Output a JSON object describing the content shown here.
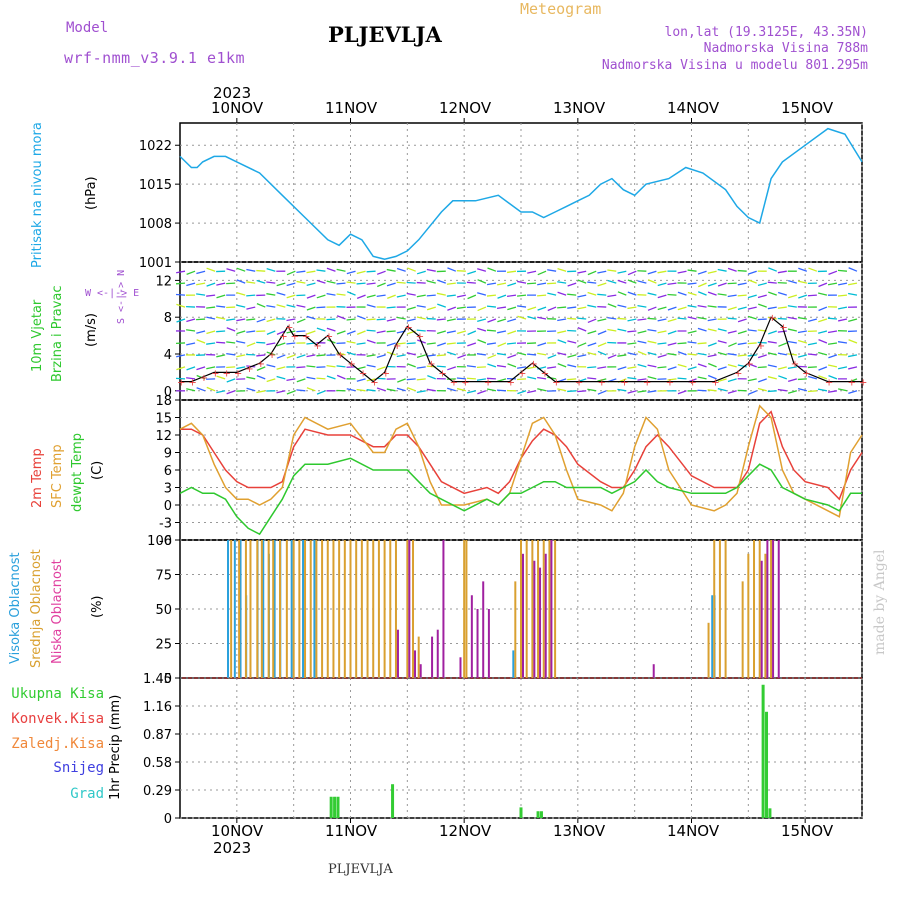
{
  "header": {
    "model_label": "Model",
    "model_name": "wrf-nmm_v3.9.1 e1km",
    "city": "PLJEVLJA",
    "meteogram": "Meteogram",
    "lonlat": "lon,lat (19.3125E, 43.35N)",
    "altitude": "Nadmorska Visina 788m",
    "altitude_model": "Nadmorska Visina u modelu 801.295m"
  },
  "footer": {
    "city": "PLJEVLJA",
    "credit": "made by Angel"
  },
  "time_axis": {
    "year": "2023",
    "days": [
      "10NOV",
      "11NOV",
      "12NOV",
      "13NOV",
      "14NOV",
      "15NOV"
    ]
  },
  "colors": {
    "pressure": "#1ea8e6",
    "temp2m": "#e8413a",
    "sfc_temp": "#e0a030",
    "dewpoint": "#2ec82e",
    "cloud_high": "#2aa0dc",
    "cloud_mid": "#d9a030",
    "cloud_low": "#a020a0",
    "precip_total": "#33cc33",
    "convective": "#e84040",
    "freezing": "#f0883a",
    "snow": "#4040e0",
    "hail": "#30c8c8",
    "purple_label": "#a050d0"
  },
  "panel_labels": {
    "pressure": "Pritisak na nivou mora",
    "pressure_unit": "(hPa)",
    "wind_line1": "10m Vjetar",
    "wind_line2": "Brzina i Pravac",
    "wind_unit": "(m/s)",
    "wind_compass": "W <-|-> E",
    "wind_compass_v": "S <-|-> N",
    "temp_line1": "2m Temp",
    "temp_line2": "SFC Temp",
    "temp_line3": "dewpt Temp",
    "temp_unit": "(C)",
    "cloud_line1": "Visoka Oblacnost",
    "cloud_line2": "Srednja Oblacnost",
    "cloud_line3": "Niska Oblacnost",
    "cloud_unit": "(%)",
    "precip_unit": "1hr Precip (mm)",
    "precip_legend": [
      "Ukupna Kisa",
      "Konvek.Kisa",
      "Zaledj.Kisa",
      "Snijeg",
      "Grad"
    ]
  },
  "chart_data": [
    {
      "type": "line",
      "name": "pressure",
      "x_unit": "days after 10NOV 00Z",
      "xlim": [
        -0.5,
        5.5
      ],
      "ylim": [
        1001,
        1026
      ],
      "yticks": [
        "1001",
        "1008",
        "1015",
        "1022"
      ],
      "x": [
        -0.5,
        -0.4,
        -0.35,
        -0.3,
        -0.2,
        -0.1,
        0,
        0.2,
        0.4,
        0.6,
        0.8,
        0.9,
        1.0,
        1.1,
        1.2,
        1.3,
        1.4,
        1.5,
        1.6,
        1.8,
        1.9,
        2.0,
        2.1,
        2.3,
        2.5,
        2.6,
        2.7,
        2.8,
        2.9,
        3.0,
        3.1,
        3.2,
        3.3,
        3.4,
        3.5,
        3.6,
        3.8,
        3.95,
        4.1,
        4.3,
        4.4,
        4.5,
        4.6,
        4.65,
        4.7,
        4.8,
        5.0,
        5.2,
        5.35,
        5.5
      ],
      "y": [
        1020,
        1018,
        1018,
        1019,
        1020,
        1020,
        1019,
        1017,
        1013,
        1009,
        1005,
        1004,
        1006,
        1005,
        1002,
        1001.5,
        1002,
        1003,
        1005,
        1010,
        1012,
        1012,
        1012,
        1013,
        1010,
        1010,
        1009,
        1010,
        1011,
        1012,
        1013,
        1015,
        1016,
        1014,
        1013,
        1015,
        1016,
        1018,
        1017,
        1014,
        1011,
        1009,
        1008,
        1012,
        1016,
        1019,
        1022,
        1025,
        1024,
        1019
      ]
    },
    {
      "type": "scatter",
      "name": "wind",
      "x_unit": "days after 10NOV 00Z",
      "xlim": [
        -0.5,
        5.5
      ],
      "ylim": [
        -1,
        14
      ],
      "yticks": [
        "0",
        "4",
        "8",
        "12"
      ],
      "series": [
        {
          "name": "speed",
          "x": [
            -0.5,
            -0.4,
            -0.3,
            -0.2,
            -0.1,
            0,
            0.1,
            0.2,
            0.3,
            0.4,
            0.45,
            0.5,
            0.6,
            0.7,
            0.8,
            0.9,
            1.0,
            1.1,
            1.2,
            1.3,
            1.4,
            1.5,
            1.6,
            1.7,
            1.8,
            1.9,
            2.0,
            2.2,
            2.4,
            2.5,
            2.6,
            2.7,
            2.8,
            3.0,
            3.2,
            3.4,
            3.6,
            3.8,
            4.0,
            4.2,
            4.4,
            4.5,
            4.6,
            4.7,
            4.8,
            4.9,
            5.0,
            5.2,
            5.4,
            5.5
          ],
          "y": [
            1,
            1,
            1.5,
            2,
            2,
            2,
            2.5,
            3,
            4,
            6,
            7,
            6,
            6,
            5,
            6,
            4,
            3,
            2,
            1,
            2,
            5,
            7,
            6,
            3,
            2,
            1,
            1,
            1,
            1,
            2,
            3,
            2,
            1,
            1,
            1,
            1,
            1,
            1,
            1,
            1,
            2,
            3,
            5,
            8,
            7,
            3,
            2,
            1,
            1,
            1
          ]
        }
      ]
    },
    {
      "type": "line",
      "name": "temperature",
      "x_unit": "days after 10NOV 00Z",
      "xlim": [
        -0.5,
        5.5
      ],
      "ylim": [
        -6,
        18
      ],
      "yticks": [
        "-6",
        "-3",
        "0",
        "3",
        "6",
        "9",
        "12",
        "15",
        "18"
      ],
      "series": [
        {
          "name": "2m Temp",
          "x": [
            -0.5,
            -0.4,
            -0.3,
            -0.2,
            -0.1,
            0,
            0.1,
            0.2,
            0.3,
            0.4,
            0.5,
            0.6,
            0.8,
            1.0,
            1.2,
            1.3,
            1.4,
            1.5,
            1.6,
            1.7,
            1.8,
            2.0,
            2.2,
            2.3,
            2.4,
            2.5,
            2.6,
            2.7,
            2.8,
            2.9,
            3.0,
            3.2,
            3.3,
            3.4,
            3.5,
            3.6,
            3.7,
            3.8,
            4.0,
            4.2,
            4.3,
            4.4,
            4.5,
            4.6,
            4.7,
            4.8,
            4.9,
            5.0,
            5.2,
            5.3,
            5.4,
            5.5
          ],
          "y": [
            13,
            13,
            12,
            9,
            6,
            4,
            3,
            3,
            3,
            4,
            10,
            13,
            12,
            12,
            10,
            10,
            12,
            12,
            10,
            7,
            4,
            2,
            3,
            2,
            4,
            8,
            11,
            13,
            12,
            10,
            7,
            4,
            3,
            3,
            6,
            10,
            12,
            10,
            5,
            3,
            3,
            3,
            6,
            14,
            16,
            10,
            6,
            4,
            3,
            1,
            6,
            9
          ]
        },
        {
          "name": "SFC Temp",
          "x": [
            -0.5,
            -0.4,
            -0.3,
            -0.2,
            -0.1,
            0,
            0.1,
            0.2,
            0.3,
            0.4,
            0.5,
            0.6,
            0.8,
            1.0,
            1.2,
            1.3,
            1.4,
            1.5,
            1.6,
            1.7,
            1.8,
            2.0,
            2.2,
            2.3,
            2.4,
            2.5,
            2.6,
            2.7,
            2.8,
            2.9,
            3.0,
            3.2,
            3.3,
            3.4,
            3.5,
            3.6,
            3.7,
            3.8,
            4.0,
            4.2,
            4.3,
            4.4,
            4.5,
            4.6,
            4.7,
            4.8,
            4.9,
            5.0,
            5.2,
            5.3,
            5.4,
            5.5
          ],
          "y": [
            13,
            14,
            12,
            7,
            3,
            1,
            1,
            0,
            1,
            3,
            12,
            15,
            13,
            14,
            9,
            9,
            13,
            14,
            10,
            4,
            0,
            0,
            1,
            0,
            2,
            8,
            14,
            15,
            12,
            6,
            1,
            0,
            -1,
            2,
            10,
            15,
            13,
            6,
            0,
            -1,
            0,
            2,
            10,
            17,
            15,
            6,
            2,
            1,
            -1,
            -2,
            9,
            12
          ]
        },
        {
          "name": "dewpt Temp",
          "x": [
            -0.5,
            -0.4,
            -0.3,
            -0.2,
            -0.1,
            0,
            0.1,
            0.2,
            0.3,
            0.4,
            0.5,
            0.6,
            0.8,
            1.0,
            1.2,
            1.3,
            1.4,
            1.5,
            1.6,
            1.7,
            1.8,
            2.0,
            2.2,
            2.3,
            2.4,
            2.5,
            2.6,
            2.7,
            2.8,
            2.9,
            3.0,
            3.2,
            3.3,
            3.4,
            3.5,
            3.6,
            3.7,
            3.8,
            4.0,
            4.2,
            4.3,
            4.4,
            4.5,
            4.6,
            4.7,
            4.8,
            4.9,
            5.0,
            5.2,
            5.3,
            5.4,
            5.5
          ],
          "y": [
            2,
            3,
            2,
            2,
            1,
            -2,
            -4,
            -5,
            -2,
            1,
            5,
            7,
            7,
            8,
            6,
            6,
            6,
            6,
            4,
            2,
            1,
            -1,
            1,
            0,
            2,
            2,
            3,
            4,
            4,
            3,
            3,
            3,
            2,
            3,
            4,
            6,
            4,
            3,
            2,
            2,
            2,
            3,
            5,
            7,
            6,
            3,
            2,
            1,
            0,
            -1,
            2,
            2
          ]
        }
      ]
    },
    {
      "type": "bar",
      "name": "cloud_cover",
      "x_unit": "days after 10NOV 00Z",
      "xlim": [
        -0.5,
        5.5
      ],
      "ylim": [
        0,
        100
      ],
      "yticks": [
        "0",
        "25",
        "50",
        "75",
        "100"
      ],
      "series": [
        {
          "name": "Visoka Oblacnost",
          "x": [
            -0.06,
            0.0,
            0.05,
            0.1,
            0.2,
            0.25,
            0.3,
            0.35,
            0.4,
            0.5,
            0.6,
            0.7,
            2.45,
            4.2,
            4.22
          ],
          "values": [
            100,
            100,
            100,
            60,
            100,
            100,
            90,
            100,
            100,
            100,
            100,
            100,
            20,
            60,
            60
          ]
        },
        {
          "name": "Srednja Oblacnost",
          "x": [
            -0.05,
            0.02,
            0.08,
            0.12,
            0.18,
            0.22,
            0.28,
            0.32,
            0.38,
            0.44,
            0.5,
            0.55,
            0.6,
            0.65,
            0.7,
            0.75,
            0.8,
            0.85,
            0.9,
            0.95,
            1.0,
            1.05,
            1.1,
            1.15,
            1.2,
            1.25,
            1.3,
            1.35,
            1.4,
            1.5,
            1.55,
            1.6,
            2.0,
            2.02,
            2.45,
            2.5,
            2.55,
            2.6,
            2.65,
            2.7,
            2.75,
            2.8,
            4.15,
            4.2,
            4.25,
            4.3,
            4.45,
            4.5,
            4.55,
            4.6,
            4.65,
            4.7
          ],
          "values": [
            100,
            100,
            100,
            100,
            100,
            100,
            100,
            100,
            100,
            100,
            100,
            100,
            100,
            100,
            100,
            100,
            100,
            100,
            100,
            100,
            100,
            100,
            100,
            100,
            100,
            100,
            100,
            100,
            100,
            100,
            100,
            30,
            100,
            100,
            70,
            100,
            100,
            100,
            100,
            100,
            100,
            100,
            40,
            100,
            100,
            100,
            70,
            90,
            100,
            100,
            90,
            100
          ]
        },
        {
          "name": "Niska Oblacnost",
          "x": [
            1.4,
            1.5,
            1.55,
            1.6,
            1.7,
            1.75,
            1.8,
            1.95,
            2.05,
            2.1,
            2.15,
            2.2,
            2.5,
            2.6,
            2.65,
            2.7,
            2.75,
            3.65,
            4.6,
            4.65,
            4.7,
            4.75
          ],
          "values": [
            35,
            100,
            20,
            10,
            30,
            35,
            100,
            15,
            60,
            50,
            70,
            50,
            90,
            85,
            80,
            90,
            100,
            10,
            85,
            100,
            100,
            100
          ]
        }
      ]
    },
    {
      "type": "bar",
      "name": "precipitation",
      "x_unit": "days after 10NOV 00Z",
      "xlim": [
        -0.5,
        5.5
      ],
      "ylim": [
        0,
        1.45
      ],
      "yticks": [
        "0",
        "0.29",
        "0.58",
        "0.87",
        "1.16",
        "1.45"
      ],
      "series": [
        {
          "name": "Ukupna Kisa",
          "x": [
            0.83,
            0.86,
            0.89,
            1.37,
            2.5,
            2.65,
            2.68,
            4.63,
            4.66,
            4.69
          ],
          "values": [
            0.22,
            0.22,
            0.22,
            0.35,
            0.11,
            0.07,
            0.07,
            1.38,
            1.1,
            0.1
          ]
        }
      ]
    }
  ]
}
